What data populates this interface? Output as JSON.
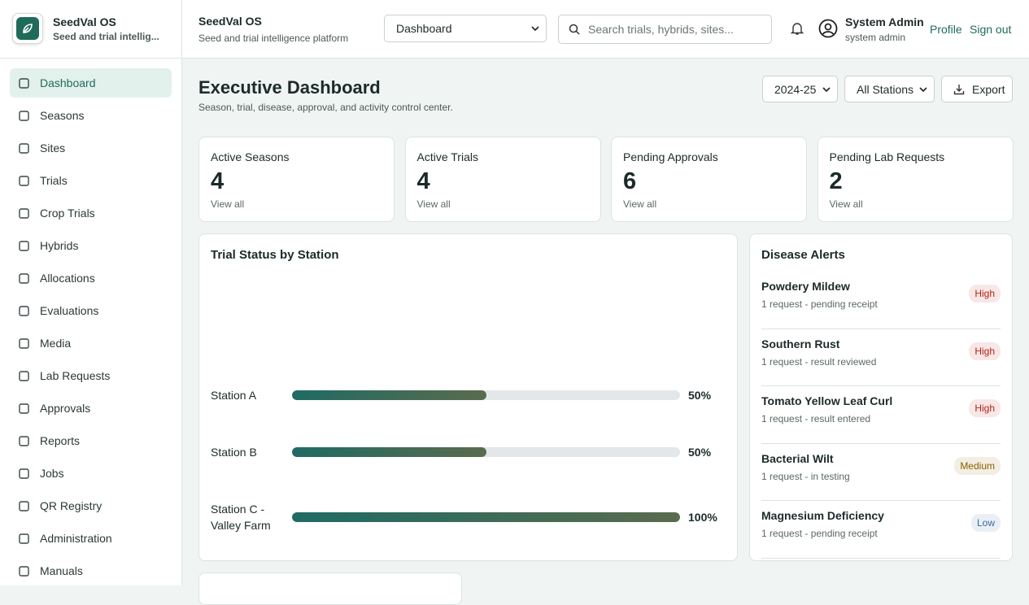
{
  "brand": {
    "name": "SeedVal OS",
    "tagline": "Seed and trial intellig..."
  },
  "nav": [
    "Dashboard",
    "Seasons",
    "Sites",
    "Trials",
    "Crop Trials",
    "Hybrids",
    "Allocations",
    "Evaluations",
    "Media",
    "Lab Requests",
    "Approvals",
    "Reports",
    "Jobs",
    "QR Registry",
    "Administration",
    "Manuals"
  ],
  "header": {
    "app_name": "SeedVal OS",
    "app_subtitle": "Seed and trial intelligence platform",
    "page_select": "Dashboard",
    "search_placeholder": "Search trials, hybrids, sites...",
    "user_name": "System Admin",
    "user_role": "system admin",
    "links": [
      "Profile",
      "Sign out"
    ]
  },
  "page": {
    "title": "Executive Dashboard",
    "subtitle": "Season, trial, disease, approval, and activity control center.",
    "filters": [
      "2024-25",
      "All Stations"
    ],
    "export": "Export"
  },
  "stats": [
    {
      "label": "Active Seasons",
      "value": 4,
      "link": "View all"
    },
    {
      "label": "Active Trials",
      "value": 4,
      "link": "View all"
    },
    {
      "label": "Pending Approvals",
      "value": 6,
      "link": "View all"
    },
    {
      "label": "Pending Lab Requests",
      "value": 2,
      "link": "View all"
    }
  ],
  "chart_data": {
    "type": "bar",
    "title": "Trial Status by Station",
    "categories": [
      "Station A",
      "Station B",
      "Station C - Valley Farm"
    ],
    "values": [
      50,
      50,
      100
    ],
    "value_labels": [
      "50%",
      "50%",
      "100%"
    ],
    "xlim": [
      0,
      100
    ],
    "colors": [
      "#1f6b63",
      "#5a6b4e"
    ]
  },
  "disease_alerts": {
    "title": "Disease Alerts",
    "items": [
      {
        "name": "Powdery Mildew",
        "detail": "1 request - pending receipt",
        "severity": "High",
        "color": "#b42318"
      },
      {
        "name": "Southern Rust",
        "detail": "1 request - result reviewed",
        "severity": "High",
        "color": "#b42318"
      },
      {
        "name": "Tomato Yellow Leaf Curl",
        "detail": "1 request - result entered",
        "severity": "High",
        "color": "#b42318"
      },
      {
        "name": "Bacterial Wilt",
        "detail": "1 request - in testing",
        "severity": "Medium",
        "color": "#8a6200"
      },
      {
        "name": "Magnesium Deficiency",
        "detail": "1 request - pending receipt",
        "severity": "Low",
        "color": "#3b6aa0"
      }
    ]
  }
}
